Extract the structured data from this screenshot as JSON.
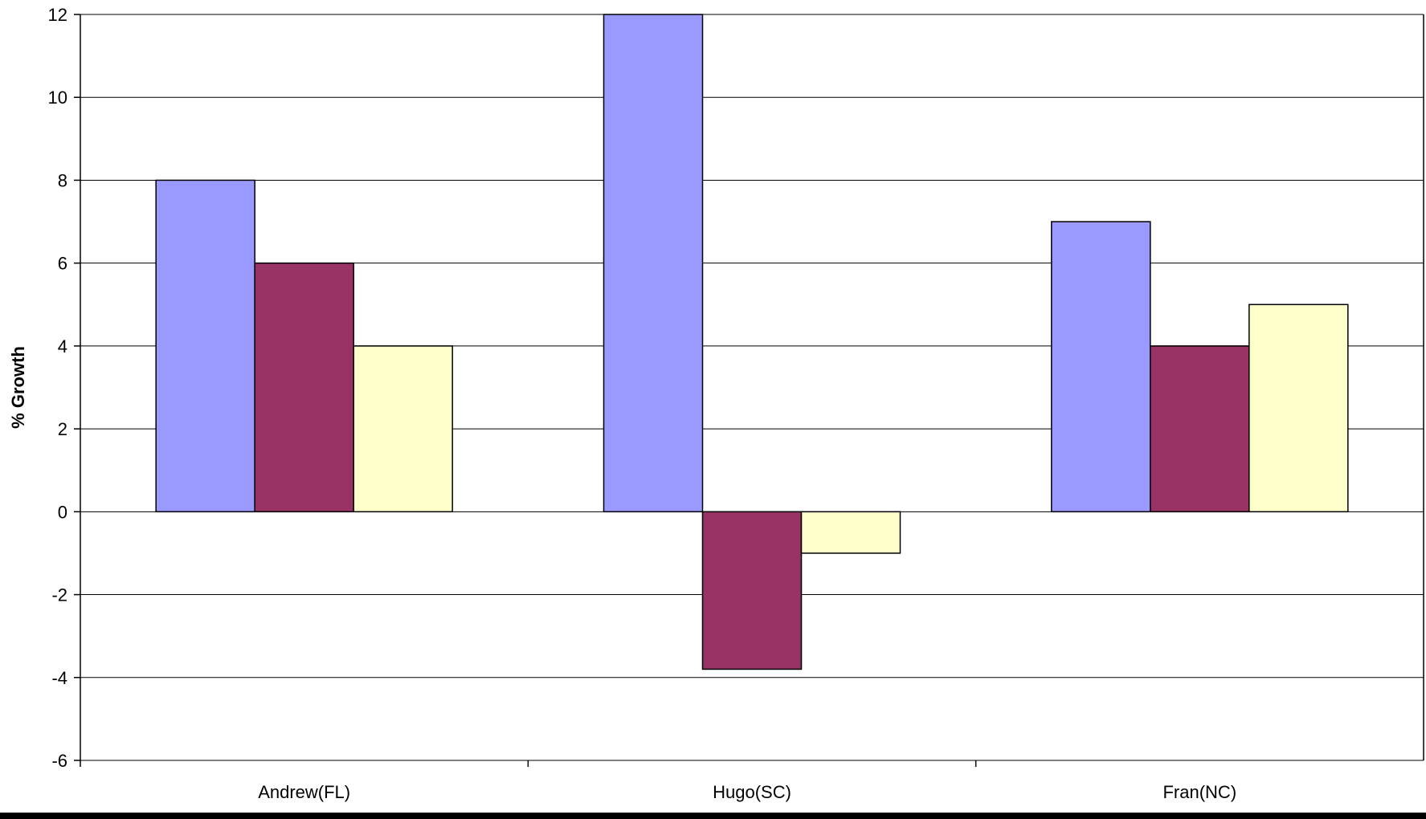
{
  "chart_data": {
    "type": "bar",
    "title": "",
    "xlabel": "",
    "ylabel": "% Growth",
    "ylim": [
      -6,
      12
    ],
    "yticks": [
      12,
      10,
      8,
      6,
      4,
      2,
      0,
      -2,
      -4,
      -6
    ],
    "ytick_labels": [
      "12",
      "10",
      "8",
      "6",
      "4",
      "2",
      "0",
      "-2",
      "-4",
      "-6"
    ],
    "grid": "horizontal",
    "legend": "none",
    "categories": [
      "Andrew(FL)",
      "Hugo(SC)",
      "Fran(NC)"
    ],
    "series": [
      {
        "values": [
          8,
          12,
          7
        ],
        "color": "#9999ff"
      },
      {
        "values": [
          6,
          -3.8,
          4
        ],
        "color": "#993366"
      },
      {
        "values": [
          4,
          -1,
          5
        ],
        "color": "#ffffcc"
      }
    ]
  },
  "colors": {
    "axis": "#000000",
    "gridline": "#000000",
    "bar_outline": "#000000",
    "frame_bottom": "#000000"
  }
}
